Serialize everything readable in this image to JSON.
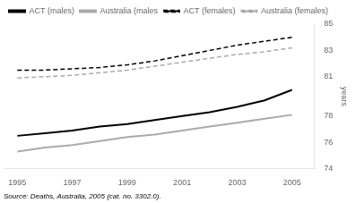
{
  "chart_data": {
    "type": "line",
    "x": [
      1995,
      1996,
      1997,
      1998,
      1999,
      2000,
      2001,
      2002,
      2003,
      2004,
      2005
    ],
    "series": [
      {
        "name": "ACT (males)",
        "color": "#000000",
        "line_style": "solid",
        "values": [
          76.5,
          76.7,
          76.9,
          77.2,
          77.4,
          77.7,
          78.0,
          78.3,
          78.7,
          79.2,
          80.0
        ]
      },
      {
        "name": "Australia (males",
        "color": "#aaaaaa",
        "line_style": "solid",
        "values": [
          75.3,
          75.6,
          75.8,
          76.1,
          76.4,
          76.6,
          76.9,
          77.2,
          77.5,
          77.8,
          78.1
        ]
      },
      {
        "name": "ACT (females)",
        "color": "#000000",
        "line_style": "dashed",
        "values": [
          81.5,
          81.5,
          81.6,
          81.7,
          81.9,
          82.2,
          82.6,
          83.0,
          83.4,
          83.7,
          84.0
        ]
      },
      {
        "name": "Australia (females)",
        "color": "#aaaaaa",
        "line_style": "dashed",
        "values": [
          80.9,
          81.0,
          81.1,
          81.3,
          81.5,
          81.8,
          82.1,
          82.4,
          82.7,
          82.9,
          83.2
        ]
      }
    ],
    "xlim": [
      1994.5,
      2005.8
    ],
    "xticks": [
      1995,
      1997,
      1999,
      2001,
      2003,
      2005
    ],
    "ylim": [
      74,
      85
    ],
    "yticks": [
      74,
      76,
      78,
      81,
      83,
      85
    ],
    "ylabel": "years",
    "annotations": [
      "Source: Deaths, Australia, 2005 (cat. no. 3302.0)."
    ],
    "grid": false,
    "legend": "upper left"
  }
}
